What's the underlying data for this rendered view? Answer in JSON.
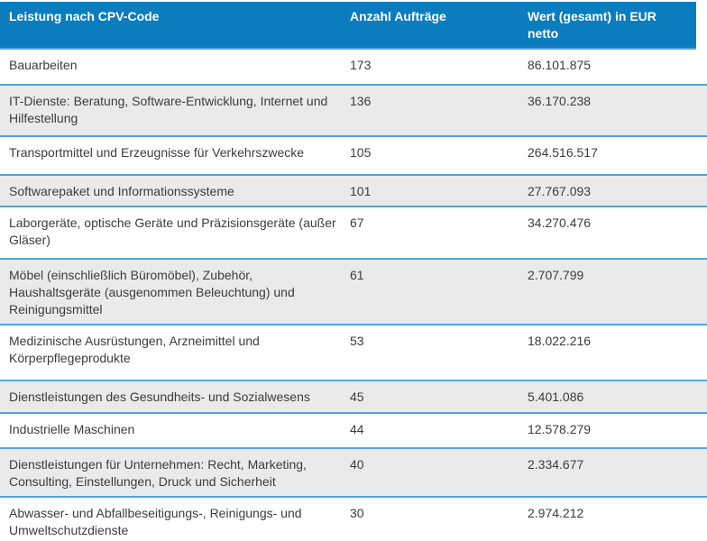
{
  "header": {
    "col_service": "Leistung nach CPV-Code",
    "col_count": "Anzahl Aufträge",
    "col_value": "Wert (gesamt) in EUR netto"
  },
  "rows": [
    {
      "service": "Bauarbeiten",
      "count": "173",
      "value": "86.101.875"
    },
    {
      "service": "IT-Dienste: Beratung, Software-Entwicklung, Internet und Hilfestellung",
      "count": "136",
      "value": "36.170.238"
    },
    {
      "service": "Transportmittel und Erzeugnisse für Verkehrszwecke",
      "count": "105",
      "value": "264.516.517"
    },
    {
      "service": "Softwarepaket und Informationssysteme",
      "count": "101",
      "value": "27.767.093"
    },
    {
      "service": "Laborgeräte, optische Geräte und Präzisionsgeräte (außer Gläser)",
      "count": "67",
      "value": "34.270.476"
    },
    {
      "service": "Möbel (einschließlich Büromöbel), Zubehör, Haushaltsgeräte (ausgenommen Beleuchtung) und Reinigungsmittel",
      "count": "61",
      "value": "2.707.799"
    },
    {
      "service": "Medizinische Ausrüstungen, Arzneimittel und Körperpflegeprodukte",
      "count": "53",
      "value": "18.022.216"
    },
    {
      "service": "Dienstleistungen des Gesundheits- und Sozialwesens",
      "count": "45",
      "value": "5.401.086"
    },
    {
      "service": "Industrielle Maschinen",
      "count": "44",
      "value": "12.578.279"
    },
    {
      "service": "Dienstleistungen für Unternehmen: Recht, Marketing, Consulting, Einstellungen, Druck und Sicherheit",
      "count": "40",
      "value": "2.334.677"
    },
    {
      "service": "Abwasser- und Abfallbeseitigungs-, Reinigungs- und Umweltschutzdienste",
      "count": "30",
      "value": "2.974.212"
    }
  ],
  "colors": {
    "header_bg": "#0b7cbe",
    "header_text": "#ffffff",
    "separator": "#54a3db",
    "alt_row_bg": "#eaeaea",
    "body_text": "#3c3c3c"
  }
}
